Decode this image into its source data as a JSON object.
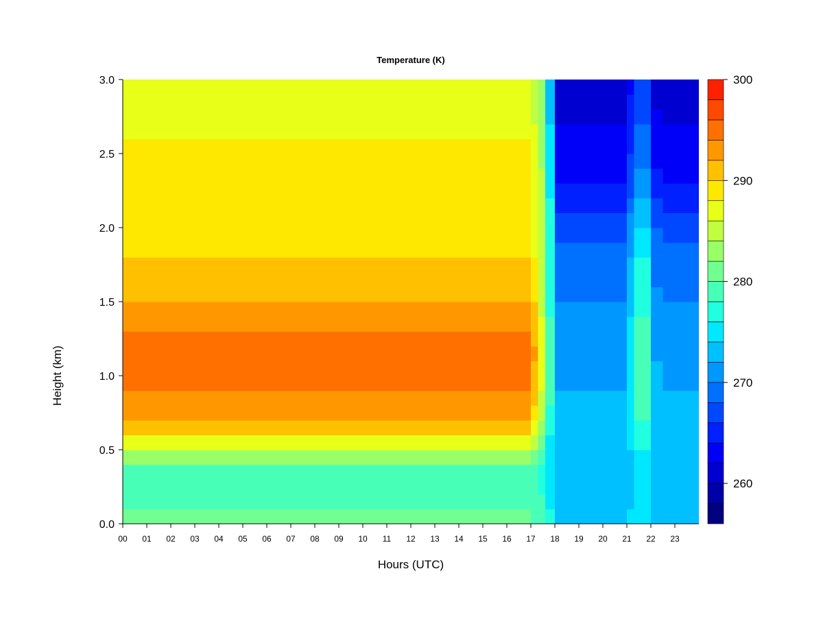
{
  "chart_data": {
    "type": "heatmap",
    "title": "Temperature (K)",
    "xlabel": "Hours (UTC)",
    "ylabel": "Height (km)",
    "xlim": [
      0,
      24
    ],
    "ylim": [
      0.0,
      3.0
    ],
    "x_ticks": [
      "00",
      "01",
      "02",
      "03",
      "04",
      "05",
      "06",
      "07",
      "08",
      "09",
      "10",
      "11",
      "12",
      "13",
      "14",
      "15",
      "16",
      "17",
      "18",
      "19",
      "20",
      "21",
      "22",
      "23"
    ],
    "y_ticks": [
      "0.0",
      "0.5",
      "1.0",
      "1.5",
      "2.0",
      "2.5",
      "3.0"
    ],
    "colorbar": {
      "range": [
        256,
        300
      ],
      "step": 2,
      "ticks": [
        "300",
        "290",
        "280",
        "270",
        "260"
      ],
      "colors": [
        "#000080",
        "#0000a8",
        "#0000d0",
        "#0000f8",
        "#0020ff",
        "#0048ff",
        "#0070ff",
        "#0098ff",
        "#00c0ff",
        "#00e8ff",
        "#20ffe0",
        "#48ffb8",
        "#70ff90",
        "#98ff68",
        "#c0ff40",
        "#e8ff18",
        "#ffe800",
        "#ffc000",
        "#ff9800",
        "#ff7000",
        "#ff4800",
        "#ff2000",
        "#e00000",
        "#b00000",
        "#800000"
      ]
    },
    "x_columns": [
      0.0,
      0.5,
      1.0,
      1.5,
      2.0,
      2.5,
      3.0,
      3.5,
      4.0,
      4.5,
      5.0,
      5.5,
      6.0,
      6.5,
      7.0,
      7.5,
      8.0,
      8.5,
      9.0,
      9.5,
      10.0,
      10.5,
      11.0,
      11.5,
      12.0,
      12.5,
      13.0,
      13.5,
      14.0,
      14.5,
      15.0,
      15.5,
      16.0,
      16.5,
      17.0,
      17.3,
      17.6,
      18.0,
      18.5,
      19.0,
      19.5,
      20.0,
      20.5,
      21.0,
      21.3,
      21.6,
      22.0,
      22.5,
      23.0,
      23.5,
      24.0
    ],
    "heights_km": [
      0.0,
      0.1,
      0.2,
      0.3,
      0.4,
      0.5,
      0.6,
      0.7,
      0.8,
      0.9,
      1.0,
      1.1,
      1.2,
      1.3,
      1.4,
      1.5,
      1.6,
      1.7,
      1.8,
      1.9,
      2.0,
      2.1,
      2.2,
      2.3,
      2.4,
      2.5,
      2.6,
      2.7,
      2.8,
      2.9,
      3.0
    ],
    "profiles_K": {
      "day": [
        281,
        280,
        279,
        278,
        280,
        285,
        289,
        292,
        293,
        294,
        294,
        295,
        295,
        294,
        293,
        292,
        291,
        290,
        290,
        289,
        288,
        288,
        289,
        289,
        288,
        288,
        288,
        287,
        287,
        286,
        286
      ],
      "transition": [
        278,
        278,
        277,
        276,
        276,
        277,
        279,
        281,
        282,
        283,
        284,
        284,
        284,
        284,
        283,
        283,
        283,
        283,
        283,
        283,
        283,
        283,
        283,
        283,
        283,
        282,
        282,
        282,
        282,
        282,
        282
      ],
      "night": [
        274,
        273,
        273,
        272,
        272,
        272,
        272,
        272,
        272,
        272,
        271,
        271,
        271,
        271,
        270,
        270,
        269,
        269,
        268,
        268,
        267,
        266,
        265,
        264,
        263,
        263,
        262,
        262,
        261,
        261,
        261
      ],
      "warm_band": [
        275,
        275,
        274,
        274,
        274,
        275,
        277,
        278,
        279,
        279,
        279,
        279,
        278,
        278,
        278,
        277,
        277,
        276,
        276,
        275,
        274,
        273,
        272,
        271,
        270,
        269,
        268,
        268,
        267,
        267,
        266
      ]
    }
  }
}
